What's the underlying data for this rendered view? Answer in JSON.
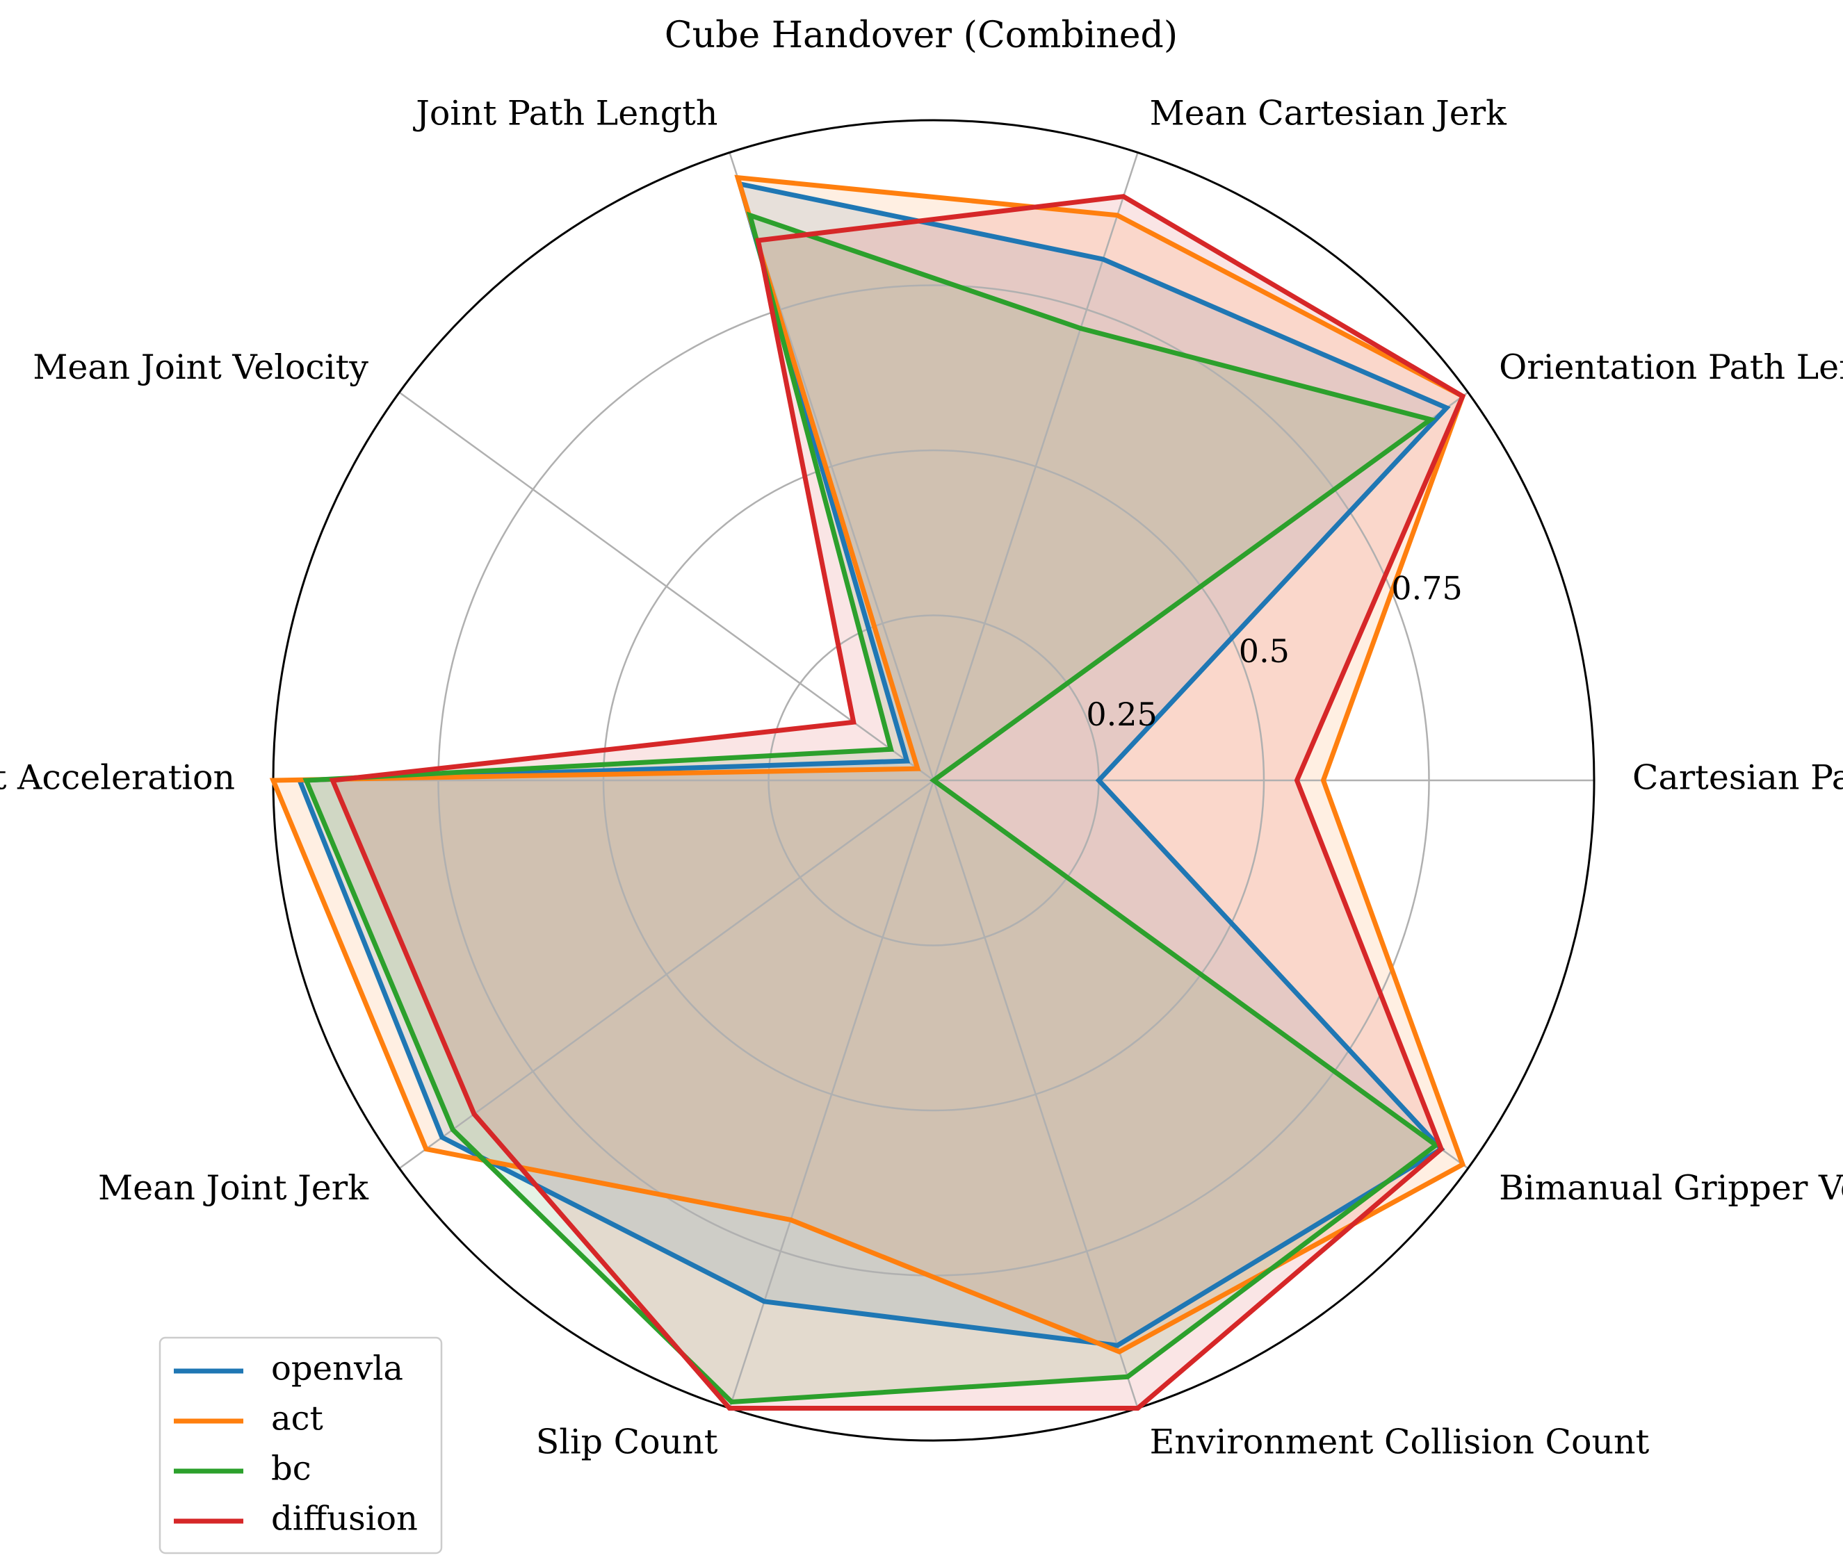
{
  "chart_data": {
    "type": "radar",
    "title": "Cube Handover (Combined)",
    "axes": [
      "Cartesian Path Length",
      "Orientation Path Length",
      "Mean Cartesian Jerk",
      "Joint Path Length",
      "Mean Joint Velocity",
      "Mean Joint Acceleration",
      "Mean Joint Jerk",
      "Slip Count",
      "Environment Collision Count",
      "Bimanual Gripper Vertical Difference"
    ],
    "radial_ticks": [
      0.25,
      0.5,
      0.75
    ],
    "radial_tick_labels": [
      "0.25",
      "0.5",
      "0.75"
    ],
    "rlim": [
      0,
      1
    ],
    "grid": true,
    "legend_position": "lower-left",
    "series": [
      {
        "name": "openvla",
        "color": "#1f77b4",
        "values": [
          0.25,
          0.96,
          0.83,
          0.95,
          0.05,
          0.96,
          0.92,
          0.83,
          0.9,
          0.95
        ]
      },
      {
        "name": "act",
        "color": "#ff7f0e",
        "values": [
          0.59,
          0.99,
          0.9,
          0.96,
          0.03,
          1.0,
          0.95,
          0.7,
          0.91,
          0.99
        ]
      },
      {
        "name": "bc",
        "color": "#2ca02c",
        "values": [
          0.0,
          0.93,
          0.72,
          0.9,
          0.08,
          0.95,
          0.9,
          0.99,
          0.95,
          0.94
        ]
      },
      {
        "name": "diffusion",
        "color": "#d62728",
        "values": [
          0.55,
          0.99,
          0.93,
          0.86,
          0.15,
          0.91,
          0.86,
          1.0,
          1.0,
          0.95
        ]
      }
    ]
  }
}
